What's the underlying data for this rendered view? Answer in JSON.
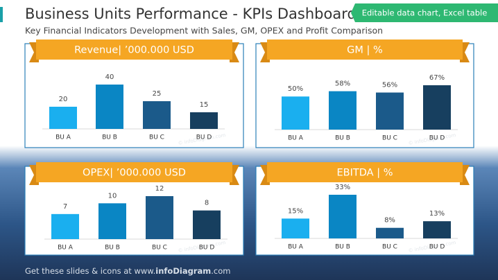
{
  "header": {
    "title": "Business Units Performance - KPIs Dashboard",
    "subtitle": "Key Financial Indicators Development with Sales, GM, OPEX and Profit Comparison"
  },
  "badge": "Editable data chart, Excel table",
  "watermark": "© infoDiagram.com",
  "footer": [
    "Get these slides & icons at www.",
    "infoDiagram",
    ".com"
  ],
  "chart_data": [
    {
      "type": "bar",
      "title": "Revenue| ’000.000 USD",
      "categories": [
        "BU A",
        "BU B",
        "BU C",
        "BU D"
      ],
      "values": [
        20,
        40,
        25,
        15
      ],
      "colors": [
        "#1aafef",
        "#0a86c4",
        "#1b5a8a",
        "#173f5f"
      ]
    },
    {
      "type": "bar",
      "title": "GM | %",
      "categories": [
        "BU A",
        "BU B",
        "BU C",
        "BU D"
      ],
      "values": [
        50,
        58,
        56,
        67
      ],
      "value_labels": [
        "50%",
        "58%",
        "56%",
        "67%"
      ],
      "colors": [
        "#1aafef",
        "#0a86c4",
        "#1b5a8a",
        "#173f5f"
      ]
    },
    {
      "type": "bar",
      "title": "OPEX| ’000.000 USD",
      "categories": [
        "BU A",
        "BU B",
        "BU C",
        "BU D"
      ],
      "values": [
        7,
        10,
        12,
        8
      ],
      "colors": [
        "#1aafef",
        "#0a86c4",
        "#1b5a8a",
        "#173f5f"
      ]
    },
    {
      "type": "bar",
      "title": "EBITDA | %",
      "categories": [
        "BU A",
        "BU B",
        "BU C",
        "BU D"
      ],
      "values": [
        15,
        33,
        8,
        13
      ],
      "value_labels": [
        "15%",
        "33%",
        "8%",
        "13%"
      ],
      "colors": [
        "#1aafef",
        "#0a86c4",
        "#1b5a8a",
        "#173f5f"
      ]
    }
  ]
}
